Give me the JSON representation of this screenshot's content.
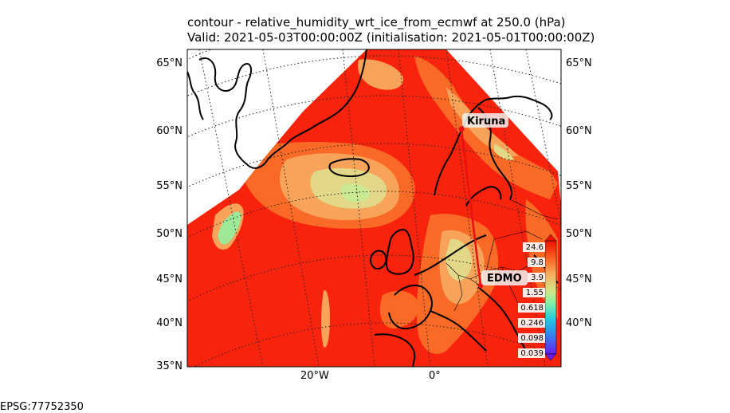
{
  "title": {
    "line1": "contour - relative_humidity_wrt_ice_from_ecmwf at 250.0 (hPa)",
    "line2": "Valid: 2021-05-03T00:00:00Z (initialisation: 2021-05-01T00:00:00Z)"
  },
  "lat_labels": [
    "65°N",
    "60°N",
    "55°N",
    "50°N",
    "45°N",
    "40°N",
    "35°N"
  ],
  "lon_labels": [
    "20°W",
    "0°"
  ],
  "crs": "EPSG:77752350",
  "places": {
    "kiruna": "Kiruna",
    "edmo": "EDMO"
  },
  "colorbar_labels": [
    "24.6",
    "9.8",
    "3.9",
    "1.55",
    "0.618",
    "0.246",
    "0.098",
    "0.039"
  ],
  "colors": {
    "dominant_fill": "#f8230c",
    "moist_orange": "#f86a26",
    "light_orange": "#f7a45a",
    "pale_yellow": "#e3d888",
    "green": "#9ee89a",
    "track": "#e81010"
  }
}
